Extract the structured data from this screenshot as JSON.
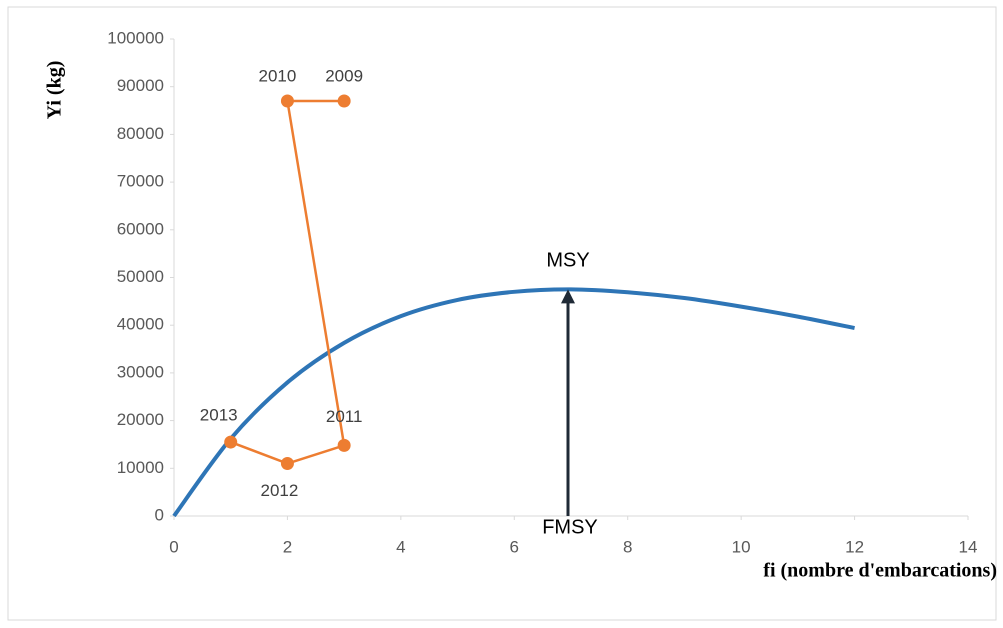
{
  "chart_data": {
    "type": "line",
    "y_label": "Yi (kg)",
    "x_label": "fi (nombre d'embarcations)",
    "xlim": [
      0,
      14
    ],
    "xticks": [
      0,
      2,
      4,
      6,
      8,
      10,
      12,
      14
    ],
    "ylim": [
      0,
      100000
    ],
    "yticks": [
      0,
      10000,
      20000,
      30000,
      40000,
      50000,
      60000,
      70000,
      80000,
      90000,
      100000
    ],
    "grid": false,
    "series": [
      {
        "color": "#2e75b6",
        "smooth": true,
        "marker": false,
        "x": [
          0,
          1,
          2,
          3,
          4,
          5,
          6,
          7,
          8,
          9,
          10,
          11,
          12
        ],
        "values": [
          0,
          16200,
          28000,
          36300,
          41900,
          45300,
          47000,
          47500,
          46900,
          45700,
          43900,
          41800,
          39400
        ]
      },
      {
        "color": "#ed7d31",
        "smooth": false,
        "marker": true,
        "x": [
          3,
          2,
          3,
          2,
          1
        ],
        "values": [
          87000,
          87000,
          14800,
          11000,
          15500
        ],
        "labels": [
          "2009",
          "2010",
          "2011",
          "2012",
          "2013"
        ]
      }
    ],
    "annotations": [
      "MSY",
      "FMSY"
    ]
  }
}
